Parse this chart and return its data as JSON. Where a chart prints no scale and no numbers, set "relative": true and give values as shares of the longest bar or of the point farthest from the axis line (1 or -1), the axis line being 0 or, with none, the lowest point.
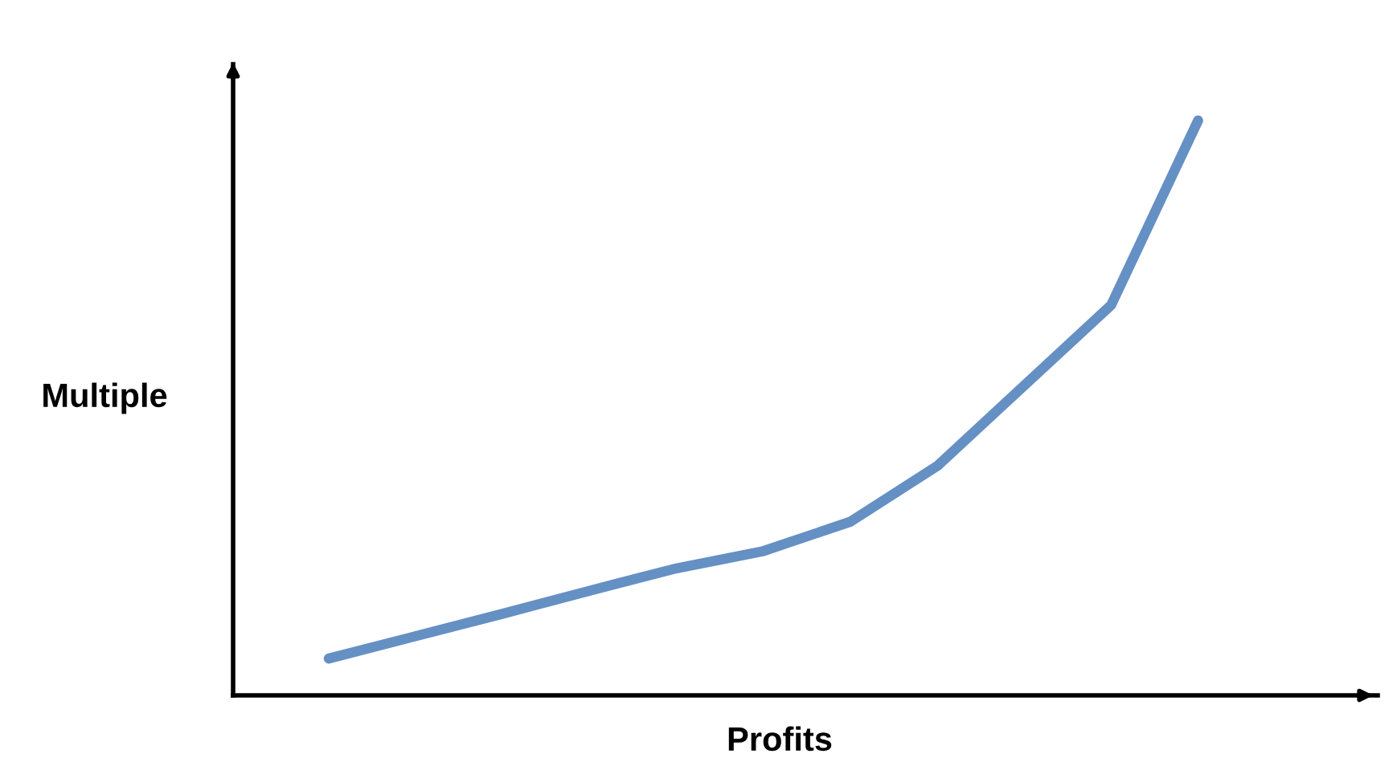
{
  "chart_data": {
    "type": "line",
    "relative": true,
    "xlabel": "Profits",
    "ylabel": "Multiple",
    "color": "#6590c4",
    "marker": "none",
    "line_style": "solid",
    "grid": false,
    "legend": false,
    "categories": [
      null,
      null,
      null,
      null,
      null,
      null,
      null,
      null,
      null,
      null,
      null
    ],
    "values": [
      0.064,
      0.103,
      0.142,
      0.182,
      0.221,
      0.251,
      0.302,
      0.399,
      0.539,
      0.679,
      1.0
    ]
  }
}
